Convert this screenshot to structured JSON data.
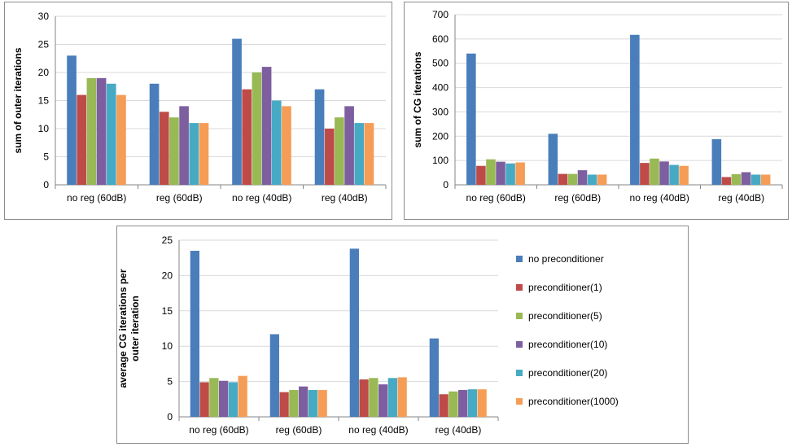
{
  "colors": {
    "series": [
      "#4a7ebb",
      "#be4b48",
      "#98b954",
      "#7d5fa0",
      "#46aac4",
      "#f59d56"
    ],
    "grid": "#d9d9d9",
    "axis": "#868686",
    "panel_border": "#8c8c8c",
    "text": "#000000"
  },
  "legend": {
    "placement": "right",
    "items": [
      {
        "label": "no preconditioner",
        "color": "#4a7ebb"
      },
      {
        "label": "preconditioner(1)",
        "color": "#be4b48"
      },
      {
        "label": "preconditioner(5)",
        "color": "#98b954"
      },
      {
        "label": "preconditioner(10)",
        "color": "#7d5fa0"
      },
      {
        "label": "preconditioner(20)",
        "color": "#46aac4"
      },
      {
        "label": "preconditioner(1000)",
        "color": "#f59d56"
      }
    ]
  },
  "chart_data": [
    {
      "type": "bar",
      "grid": true,
      "title": "",
      "xlabel": "",
      "ylabel": "sum of outer iterations",
      "ylim": [
        0,
        30
      ],
      "yticks": [
        0,
        5,
        10,
        15,
        20,
        25,
        30
      ],
      "categories": [
        "no reg (60dB)",
        "reg (60dB)",
        "no reg (40dB)",
        "reg (40dB)"
      ],
      "series": [
        {
          "name": "no preconditioner",
          "values": [
            23,
            18,
            26,
            17
          ]
        },
        {
          "name": "preconditioner(1)",
          "values": [
            16,
            13,
            17,
            10
          ]
        },
        {
          "name": "preconditioner(5)",
          "values": [
            19,
            12,
            20,
            12
          ]
        },
        {
          "name": "preconditioner(10)",
          "values": [
            19,
            14,
            21,
            14
          ]
        },
        {
          "name": "preconditioner(20)",
          "values": [
            18,
            11,
            15,
            11
          ]
        },
        {
          "name": "preconditioner(1000)",
          "values": [
            16,
            11,
            14,
            11
          ]
        }
      ]
    },
    {
      "type": "bar",
      "grid": true,
      "title": "",
      "xlabel": "",
      "ylabel": "sum of CG iterations",
      "ylim": [
        0,
        700
      ],
      "yticks": [
        0,
        100,
        200,
        300,
        400,
        500,
        600,
        700
      ],
      "categories": [
        "no reg (60dB)",
        "reg (60dB)",
        "no reg (40dB)",
        "reg (40dB)"
      ],
      "series": [
        {
          "name": "no preconditioner",
          "values": [
            540,
            210,
            617,
            188
          ]
        },
        {
          "name": "preconditioner(1)",
          "values": [
            78,
            45,
            90,
            32
          ]
        },
        {
          "name": "preconditioner(5)",
          "values": [
            105,
            45,
            108,
            44
          ]
        },
        {
          "name": "preconditioner(10)",
          "values": [
            95,
            60,
            96,
            52
          ]
        },
        {
          "name": "preconditioner(20)",
          "values": [
            88,
            42,
            82,
            42
          ]
        },
        {
          "name": "preconditioner(1000)",
          "values": [
            92,
            42,
            78,
            42
          ]
        }
      ]
    },
    {
      "type": "bar",
      "grid": true,
      "title": "",
      "xlabel": "",
      "ylabel": "average CG iterations per outer iteration",
      "ylabel_lines": [
        "average CG iterations per",
        "outer iteration"
      ],
      "ylim": [
        0,
        25
      ],
      "yticks": [
        0,
        5,
        10,
        15,
        20,
        25
      ],
      "categories": [
        "no reg (60dB)",
        "reg (60dB)",
        "no reg (40dB)",
        "reg (40dB)"
      ],
      "series": [
        {
          "name": "no preconditioner",
          "values": [
            23.5,
            11.7,
            23.8,
            11.1
          ]
        },
        {
          "name": "preconditioner(1)",
          "values": [
            4.9,
            3.5,
            5.3,
            3.2
          ]
        },
        {
          "name": "preconditioner(5)",
          "values": [
            5.5,
            3.8,
            5.5,
            3.6
          ]
        },
        {
          "name": "preconditioner(10)",
          "values": [
            5.1,
            4.3,
            4.6,
            3.8
          ]
        },
        {
          "name": "preconditioner(20)",
          "values": [
            4.9,
            3.8,
            5.5,
            3.9
          ]
        },
        {
          "name": "preconditioner(1000)",
          "values": [
            5.8,
            3.8,
            5.6,
            3.9
          ]
        }
      ]
    }
  ]
}
